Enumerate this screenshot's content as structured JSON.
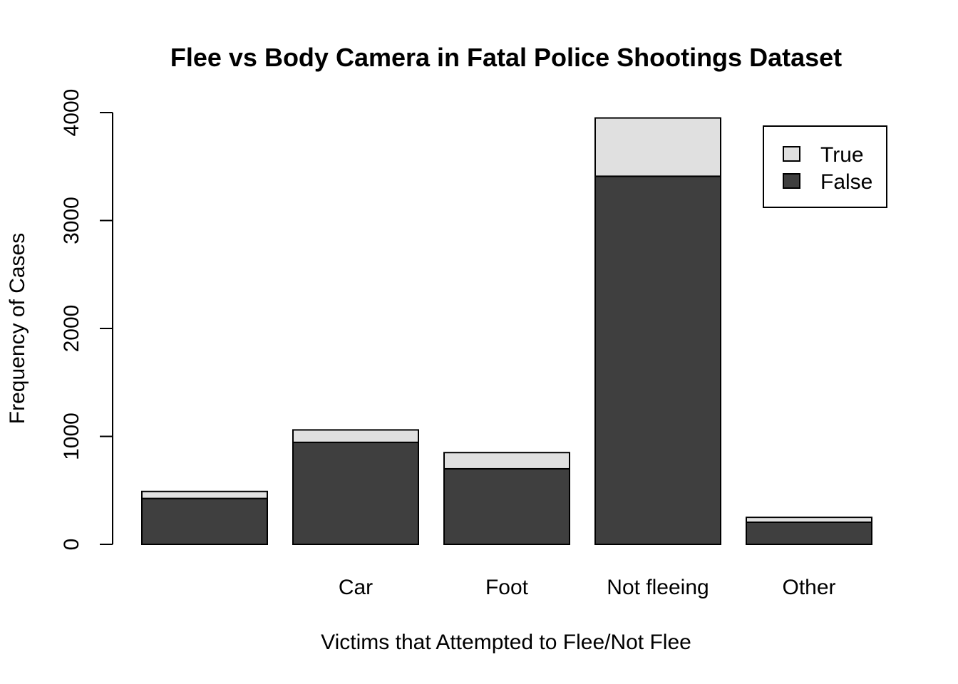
{
  "chart_data": {
    "type": "bar",
    "stacked": true,
    "title": "Flee vs Body Camera in Fatal Police Shootings Dataset",
    "xlabel": "Victims that Attempted to Flee/Not Flee",
    "ylabel": "Frequency of Cases",
    "categories": [
      "",
      "Car",
      "Foot",
      "Not fleeing",
      "Other"
    ],
    "series": [
      {
        "name": "False",
        "color": "#3f3f3f",
        "values": [
          425,
          945,
          700,
          3410,
          205
        ]
      },
      {
        "name": "True",
        "color": "#e0e0e0",
        "values": [
          65,
          115,
          150,
          540,
          45
        ]
      }
    ],
    "ylim": [
      0,
      4000
    ],
    "yticks": [
      0,
      1000,
      2000,
      3000,
      4000
    ],
    "legend": {
      "position": "top-right",
      "entries": [
        {
          "label": "True",
          "color": "#e0e0e0"
        },
        {
          "label": "False",
          "color": "#3f3f3f"
        }
      ]
    },
    "grid": false
  }
}
